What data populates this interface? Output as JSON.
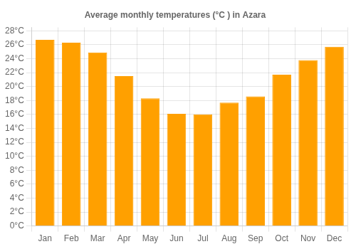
{
  "chart_data": {
    "type": "bar",
    "title": "Average monthly temperatures (°C ) in Azara",
    "categories": [
      "Jan",
      "Feb",
      "Mar",
      "Apr",
      "May",
      "Jun",
      "Jul",
      "Aug",
      "Sep",
      "Oct",
      "Nov",
      "Dec"
    ],
    "values": [
      26.7,
      26.3,
      24.9,
      21.5,
      18.3,
      16.1,
      16.0,
      17.7,
      18.6,
      21.7,
      23.8,
      25.7
    ],
    "color": "#FFA000",
    "ylim": [
      0,
      28.5
    ],
    "yticks": [
      {
        "value": 0,
        "label": "0°C"
      },
      {
        "value": 2,
        "label": "2°C"
      },
      {
        "value": 4,
        "label": "4°C"
      },
      {
        "value": 6,
        "label": "6°C"
      },
      {
        "value": 8,
        "label": "8°C"
      },
      {
        "value": 10,
        "label": "10°C"
      },
      {
        "value": 12,
        "label": "12°C"
      },
      {
        "value": 14,
        "label": "14°C"
      },
      {
        "value": 16,
        "label": "16°C"
      },
      {
        "value": 18,
        "label": "18°C"
      },
      {
        "value": 20,
        "label": "20°C"
      },
      {
        "value": 22,
        "label": "22°C"
      },
      {
        "value": 24,
        "label": "24°C"
      },
      {
        "value": 26,
        "label": "26°C"
      },
      {
        "value": 28,
        "label": "28°C"
      }
    ],
    "grid": true
  }
}
